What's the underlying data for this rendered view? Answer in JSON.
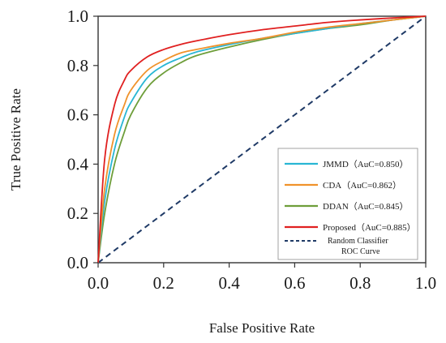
{
  "chart_data": {
    "type": "line",
    "xlabel": "False Positive Rate",
    "ylabel": "True Positive Rate",
    "xlim": [
      0.0,
      1.0
    ],
    "ylim": [
      0.0,
      1.0
    ],
    "x_ticks": [
      0.0,
      0.2,
      0.4,
      0.6,
      0.8,
      1.0
    ],
    "y_ticks": [
      0.0,
      0.2,
      0.4,
      0.6,
      0.8,
      1.0
    ],
    "x_tick_labels": [
      "0.0",
      "0.2",
      "0.4",
      "0.6",
      "0.8",
      "1.0"
    ],
    "y_tick_labels": [
      "0.0",
      "0.2",
      "0.4",
      "0.6",
      "0.8",
      "1.0"
    ],
    "grid": false,
    "legend_position": "bottom-right",
    "series": [
      {
        "name": "JMMD（AuC=0.850）",
        "color": "#29b6d4",
        "style": "solid",
        "x": [
          0,
          0.02,
          0.05,
          0.08,
          0.1,
          0.15,
          0.2,
          0.25,
          0.3,
          0.4,
          0.5,
          0.6,
          0.7,
          0.8,
          0.9,
          1.0
        ],
        "y": [
          0,
          0.25,
          0.46,
          0.59,
          0.65,
          0.75,
          0.8,
          0.83,
          0.855,
          0.885,
          0.91,
          0.93,
          0.95,
          0.97,
          0.985,
          1.0
        ]
      },
      {
        "name": "CDA（AuC=0.862）",
        "color": "#f0922b",
        "style": "solid",
        "x": [
          0,
          0.02,
          0.05,
          0.08,
          0.1,
          0.15,
          0.2,
          0.25,
          0.3,
          0.4,
          0.5,
          0.6,
          0.7,
          0.8,
          0.9,
          1.0
        ],
        "y": [
          0,
          0.3,
          0.52,
          0.64,
          0.7,
          0.78,
          0.82,
          0.85,
          0.865,
          0.89,
          0.91,
          0.935,
          0.955,
          0.97,
          0.985,
          1.0
        ]
      },
      {
        "name": "DDAN（AuC=0.845）",
        "color": "#6e9e3a",
        "style": "solid",
        "x": [
          0,
          0.02,
          0.05,
          0.08,
          0.1,
          0.15,
          0.2,
          0.25,
          0.3,
          0.4,
          0.5,
          0.6,
          0.7,
          0.8,
          0.9,
          1.0
        ],
        "y": [
          0,
          0.2,
          0.4,
          0.53,
          0.6,
          0.71,
          0.77,
          0.81,
          0.84,
          0.875,
          0.905,
          0.93,
          0.95,
          0.965,
          0.985,
          1.0
        ]
      },
      {
        "name": "Proposed（AuC=0.885）",
        "color": "#e02020",
        "style": "solid",
        "x": [
          0,
          0.02,
          0.05,
          0.08,
          0.1,
          0.15,
          0.2,
          0.25,
          0.3,
          0.4,
          0.5,
          0.6,
          0.7,
          0.8,
          0.9,
          1.0
        ],
        "y": [
          0,
          0.42,
          0.64,
          0.74,
          0.78,
          0.835,
          0.865,
          0.885,
          0.9,
          0.925,
          0.945,
          0.96,
          0.975,
          0.985,
          0.993,
          1.0
        ]
      },
      {
        "name": "Random Classifier ROC Curve",
        "name_lines": [
          "Random Classifier",
          "ROC Curve"
        ],
        "color": "#1f3a66",
        "style": "dashed",
        "x": [
          0,
          1.0
        ],
        "y": [
          0,
          1.0
        ]
      }
    ]
  }
}
